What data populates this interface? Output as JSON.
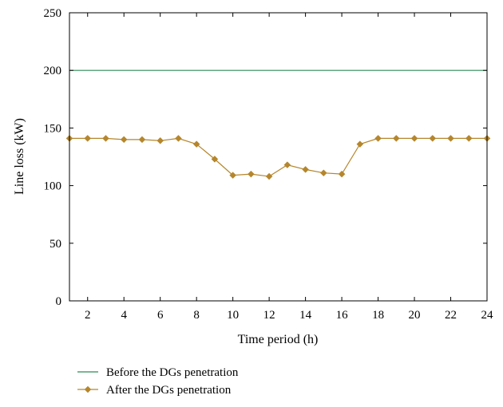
{
  "chart_data": {
    "type": "line",
    "title": "",
    "xlabel": "Time period (h)",
    "ylabel": "Line loss (kW)",
    "xlim": [
      1,
      24
    ],
    "ylim": [
      0,
      250
    ],
    "x_ticks": [
      2,
      4,
      6,
      8,
      10,
      12,
      14,
      16,
      18,
      20,
      22,
      24
    ],
    "y_ticks": [
      0,
      50,
      100,
      150,
      200,
      250
    ],
    "grid": false,
    "legend_position": "bottom",
    "x": [
      1,
      2,
      3,
      4,
      5,
      6,
      7,
      8,
      9,
      10,
      11,
      12,
      13,
      14,
      15,
      16,
      17,
      18,
      19,
      20,
      21,
      22,
      23,
      24
    ],
    "series": [
      {
        "name": "Before the DGs penetration",
        "color": "#2e8b57",
        "marker": "none",
        "values": [
          200,
          200,
          200,
          200,
          200,
          200,
          200,
          200,
          200,
          200,
          200,
          200,
          200,
          200,
          200,
          200,
          200,
          200,
          200,
          200,
          200,
          200,
          200,
          200
        ]
      },
      {
        "name": "After the DGs penetration",
        "color": "#b5862c",
        "marker": "diamond",
        "values": [
          141,
          141,
          141,
          140,
          140,
          139,
          141,
          136,
          123,
          109,
          110,
          108,
          118,
          114,
          111,
          110,
          136,
          141,
          141,
          141,
          141,
          141,
          141,
          141
        ]
      }
    ]
  }
}
